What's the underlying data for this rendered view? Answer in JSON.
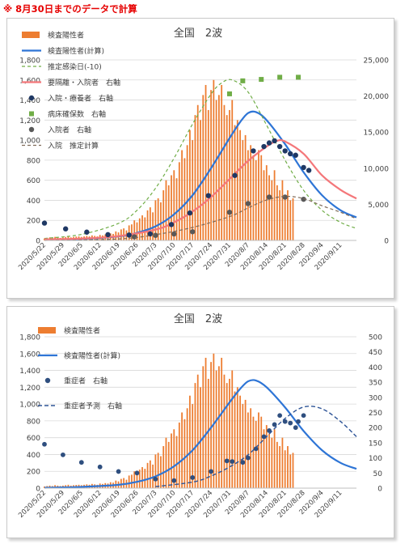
{
  "header_note": "※ 8月30日までのデータで計算",
  "colors": {
    "positive_bar": "#ed7d31",
    "positive_calc": "#2e75d6",
    "est_infection": "#70ad47",
    "isolation": "#f4777a",
    "hospitalized": "#1f3864",
    "beds": "#70ad47",
    "inpatient": "#595959",
    "inpatient_est": "#7f6a58",
    "severe": "#2f4f7f",
    "severe_pred": "#2f5597"
  },
  "chart_data": [
    {
      "type": "bar",
      "title": "全国　2波",
      "x_tick_labels": [
        "2020/5/22",
        "2020/5/29",
        "2020/6/5",
        "2020/6/12",
        "2020/6/19",
        "2020/6/26",
        "2020/7/3",
        "2020/7/10",
        "2020/7/17",
        "2020/7/24",
        "2020/7/31",
        "2020/8/7",
        "2020/8/14",
        "2020/8/21",
        "2020/8/28",
        "2020/9/4",
        "2020/9/11"
      ],
      "x_range": [
        "2020/5/22",
        "2020/9/17"
      ],
      "ylim_left": [
        0,
        1800
      ],
      "y_ticks_left": [
        "0",
        "200",
        "400",
        "600",
        "800",
        "1,000",
        "1,200",
        "1,400",
        "1,600",
        "1,800"
      ],
      "ylim_right": [
        0,
        25000
      ],
      "y_ticks_right": [
        "0",
        "5,000",
        "10,000",
        "15,000",
        "20,000",
        "25,000"
      ],
      "legend": [
        "検査陽性者",
        "検査陽性者(計算)",
        "推定感染日(-10)",
        "要隔離・入院者　右軸",
        "入院・療養者　右軸",
        "病床確保数　右軸",
        "入院者　右軸",
        "入院　推定計算"
      ],
      "series": [
        {
          "name": "検査陽性者",
          "kind": "bar",
          "axis": "left",
          "start": "2020/5/22",
          "values": [
            20,
            25,
            30,
            25,
            35,
            30,
            25,
            30,
            35,
            40,
            30,
            35,
            38,
            40,
            35,
            40,
            45,
            40,
            50,
            45,
            40,
            55,
            50,
            60,
            55,
            70,
            65,
            90,
            80,
            110,
            120,
            100,
            150,
            160,
            200,
            180,
            220,
            250,
            230,
            300,
            330,
            280,
            400,
            420,
            380,
            500,
            600,
            550,
            650,
            700,
            620,
            780,
            900,
            820,
            950,
            1100,
            1000,
            1250,
            1350,
            1200,
            1450,
            1550,
            1300,
            1500,
            1600,
            1400,
            1450,
            1550,
            1350,
            1250,
            1300,
            1400,
            1150,
            1200,
            1100,
            1000,
            1050,
            900,
            950,
            850,
            800,
            900,
            850,
            700,
            750,
            650,
            600,
            700,
            550,
            500,
            600,
            450,
            500,
            400,
            420
          ]
        },
        {
          "name": "検査陽性者(計算)",
          "kind": "line",
          "axis": "left",
          "x": [
            "2020/5/22",
            "2020/6/5",
            "2020/6/19",
            "2020/6/26",
            "2020/7/3",
            "2020/7/10",
            "2020/7/17",
            "2020/7/24",
            "2020/7/31",
            "2020/8/4",
            "2020/8/7",
            "2020/8/10",
            "2020/8/14",
            "2020/8/21",
            "2020/8/28",
            "2020/9/4",
            "2020/9/11",
            "2020/9/17"
          ],
          "y": [
            5,
            15,
            40,
            75,
            140,
            260,
            450,
            720,
            1020,
            1180,
            1270,
            1280,
            1200,
            960,
            680,
            450,
            300,
            230
          ]
        },
        {
          "name": "推定感染日(-10)",
          "kind": "line",
          "axis": "left",
          "x": [
            "2020/5/22",
            "2020/6/5",
            "2020/6/19",
            "2020/6/26",
            "2020/7/3",
            "2020/7/10",
            "2020/7/17",
            "2020/7/24",
            "2020/7/28",
            "2020/8/1",
            "2020/8/7",
            "2020/8/14",
            "2020/8/21",
            "2020/8/28",
            "2020/9/4",
            "2020/9/11",
            "2020/9/17"
          ],
          "y": [
            20,
            60,
            170,
            300,
            520,
            820,
            1160,
            1460,
            1570,
            1600,
            1480,
            1150,
            800,
            500,
            300,
            180,
            120
          ]
        },
        {
          "name": "要隔離・入院者　右軸",
          "kind": "line",
          "axis": "right",
          "x": [
            "2020/5/22",
            "2020/6/5",
            "2020/6/19",
            "2020/7/3",
            "2020/7/10",
            "2020/7/17",
            "2020/7/24",
            "2020/7/31",
            "2020/8/7",
            "2020/8/14",
            "2020/8/18",
            "2020/8/21",
            "2020/8/28",
            "2020/9/4",
            "2020/9/11",
            "2020/9/17"
          ],
          "y": [
            150,
            250,
            600,
            1500,
            2500,
            4000,
            6000,
            8500,
            11000,
            13000,
            13800,
            13700,
            12000,
            9000,
            7000,
            5800
          ]
        },
        {
          "name": "入院・療養者　右軸",
          "kind": "scatter",
          "axis": "right",
          "x": [
            "2020/5/22",
            "2020/5/30",
            "2020/6/7",
            "2020/6/15",
            "2020/6/23",
            "2020/7/1",
            "2020/7/9",
            "2020/7/16",
            "2020/7/23",
            "2020/8/2",
            "2020/8/9",
            "2020/8/13",
            "2020/8/15",
            "2020/8/17",
            "2020/8/19",
            "2020/8/21",
            "2020/8/23",
            "2020/8/25",
            "2020/8/28",
            "2020/8/30"
          ],
          "y": [
            2400,
            1600,
            1150,
            800,
            750,
            900,
            2200,
            3800,
            6200,
            9000,
            12400,
            13000,
            13500,
            13800,
            13000,
            12400,
            12000,
            11800,
            10100,
            9700
          ]
        },
        {
          "name": "病床確保数　右軸",
          "kind": "scatter",
          "axis": "right",
          "x": [
            "2020/7/31",
            "2020/8/5",
            "2020/8/12",
            "2020/8/19",
            "2020/8/26"
          ],
          "y": [
            20300,
            22100,
            22300,
            22600,
            22600
          ]
        },
        {
          "name": "入院者　右軸",
          "kind": "scatter",
          "axis": "right",
          "x": [
            "2020/6/25",
            "2020/7/3",
            "2020/7/10",
            "2020/7/17",
            "2020/7/31",
            "2020/8/7",
            "2020/8/15",
            "2020/8/21",
            "2020/8/28"
          ],
          "y": [
            500,
            700,
            900,
            1200,
            3900,
            5100,
            6000,
            6000,
            5700
          ]
        },
        {
          "name": "入院　推定計算",
          "kind": "line",
          "axis": "right",
          "x": [
            "2020/5/22",
            "2020/6/19",
            "2020/7/3",
            "2020/7/17",
            "2020/7/31",
            "2020/8/7",
            "2020/8/14",
            "2020/8/21",
            "2020/8/28",
            "2020/9/4",
            "2020/9/11",
            "2020/9/17"
          ],
          "y": [
            0,
            200,
            800,
            1800,
            3300,
            4500,
            5600,
            6100,
            5800,
            4800,
            3900,
            3000
          ]
        }
      ]
    },
    {
      "type": "bar",
      "title": "全国　2波",
      "x_tick_labels": [
        "2020/5/22",
        "2020/5/29",
        "2020/6/5",
        "2020/6/12",
        "2020/6/19",
        "2020/6/26",
        "2020/7/3",
        "2020/7/10",
        "2020/7/17",
        "2020/7/24",
        "2020/7/31",
        "2020/8/7",
        "2020/8/14",
        "2020/8/21",
        "2020/8/28",
        "2020/9/4",
        "2020/9/11"
      ],
      "x_range": [
        "2020/5/22",
        "2020/9/17"
      ],
      "ylim_left": [
        0,
        1800
      ],
      "y_ticks_left": [
        "0",
        "200",
        "400",
        "600",
        "800",
        "1,000",
        "1,200",
        "1,400",
        "1,600",
        "1,800"
      ],
      "ylim_right": [
        0,
        500
      ],
      "y_ticks_right": [
        "0",
        "50",
        "100",
        "150",
        "200",
        "250",
        "300",
        "350",
        "400",
        "450",
        "500"
      ],
      "legend": [
        "検査陽性者",
        "検査陽性者(計算)",
        "重症者　右軸",
        "重症者予測　右軸"
      ],
      "series": [
        {
          "name": "検査陽性者",
          "kind": "bar",
          "axis": "left",
          "start": "2020/5/22",
          "values": [
            20,
            25,
            30,
            25,
            35,
            30,
            25,
            30,
            35,
            40,
            30,
            35,
            38,
            40,
            35,
            40,
            45,
            40,
            50,
            45,
            40,
            55,
            50,
            60,
            55,
            70,
            65,
            90,
            80,
            110,
            120,
            100,
            150,
            160,
            200,
            180,
            220,
            250,
            230,
            300,
            330,
            280,
            400,
            420,
            380,
            500,
            600,
            550,
            650,
            700,
            620,
            780,
            900,
            820,
            950,
            1100,
            1000,
            1250,
            1350,
            1200,
            1450,
            1550,
            1300,
            1500,
            1600,
            1400,
            1450,
            1550,
            1350,
            1250,
            1300,
            1400,
            1150,
            1200,
            1100,
            1000,
            1050,
            900,
            950,
            850,
            800,
            900,
            850,
            700,
            750,
            650,
            600,
            700,
            550,
            500,
            600,
            450,
            500,
            400,
            420
          ]
        },
        {
          "name": "検査陽性者(計算)",
          "kind": "line",
          "axis": "left",
          "x": [
            "2020/5/22",
            "2020/6/5",
            "2020/6/19",
            "2020/6/26",
            "2020/7/3",
            "2020/7/10",
            "2020/7/17",
            "2020/7/24",
            "2020/7/31",
            "2020/8/4",
            "2020/8/7",
            "2020/8/10",
            "2020/8/14",
            "2020/8/21",
            "2020/8/28",
            "2020/9/4",
            "2020/9/11",
            "2020/9/17"
          ],
          "y": [
            5,
            15,
            40,
            75,
            140,
            260,
            450,
            720,
            1020,
            1180,
            1270,
            1280,
            1200,
            960,
            680,
            450,
            300,
            230
          ]
        },
        {
          "name": "重症者　右軸",
          "kind": "scatter",
          "axis": "right",
          "x": [
            "2020/5/22",
            "2020/5/29",
            "2020/6/5",
            "2020/6/12",
            "2020/6/19",
            "2020/6/26",
            "2020/7/3",
            "2020/7/10",
            "2020/7/17",
            "2020/7/24",
            "2020/7/30",
            "2020/8/1",
            "2020/8/5",
            "2020/8/7",
            "2020/8/10",
            "2020/8/13",
            "2020/8/15",
            "2020/8/17",
            "2020/8/19",
            "2020/8/21",
            "2020/8/23",
            "2020/8/25",
            "2020/8/26",
            "2020/8/28"
          ],
          "y": [
            145,
            110,
            85,
            70,
            55,
            50,
            30,
            25,
            35,
            55,
            90,
            88,
            85,
            100,
            130,
            170,
            190,
            210,
            240,
            220,
            215,
            200,
            220,
            240
          ]
        },
        {
          "name": "重症者予測　右軸",
          "kind": "line",
          "axis": "right",
          "x": [
            "2020/7/3",
            "2020/7/17",
            "2020/7/24",
            "2020/7/31",
            "2020/8/7",
            "2020/8/14",
            "2020/8/21",
            "2020/8/28",
            "2020/9/4",
            "2020/9/11",
            "2020/9/17"
          ],
          "y": [
            5,
            20,
            40,
            70,
            110,
            170,
            230,
            268,
            262,
            220,
            170
          ]
        }
      ]
    }
  ]
}
